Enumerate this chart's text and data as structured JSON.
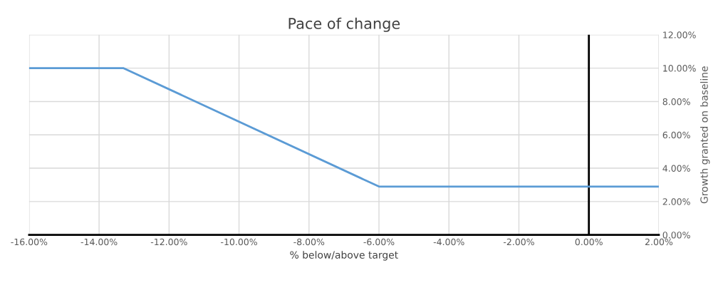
{
  "chart_data": {
    "type": "line",
    "title": "Pace of change",
    "xlabel": "% below/above target",
    "y2label": "Growth granted on baseline",
    "x": [
      -16,
      -13.3,
      -6.0,
      2
    ],
    "series": [
      {
        "color": "#5b9bd5",
        "axis": "y2",
        "values": [
          10.0,
          10.0,
          2.9,
          2.9
        ]
      }
    ],
    "xlim": [
      -16,
      2
    ],
    "xticks": [
      {
        "value": -16,
        "label": "-16.00%"
      },
      {
        "value": -14,
        "label": "-14.00%"
      },
      {
        "value": -12,
        "label": "-12.00%"
      },
      {
        "value": -10,
        "label": "-10.00%"
      },
      {
        "value": -8,
        "label": "-8.00%"
      },
      {
        "value": -6,
        "label": "-6.00%"
      },
      {
        "value": -4,
        "label": "-4.00%"
      },
      {
        "value": -2,
        "label": "-2.00%"
      },
      {
        "value": 0,
        "label": "0.00%"
      },
      {
        "value": 2,
        "label": "2.00%"
      }
    ],
    "y2lim": [
      0,
      12
    ],
    "y2ticks": [
      {
        "value": 0,
        "label": "0.00%"
      },
      {
        "value": 2,
        "label": "2.00%"
      },
      {
        "value": 4,
        "label": "4.00%"
      },
      {
        "value": 6,
        "label": "6.00%"
      },
      {
        "value": 8,
        "label": "8.00%"
      },
      {
        "value": 10,
        "label": "10.00%"
      },
      {
        "value": 12,
        "label": "12.00%"
      }
    ],
    "ref_lines": [
      {
        "axis": "x",
        "value": 0,
        "color": "#000000"
      }
    ],
    "grid": true,
    "legend": false
  }
}
